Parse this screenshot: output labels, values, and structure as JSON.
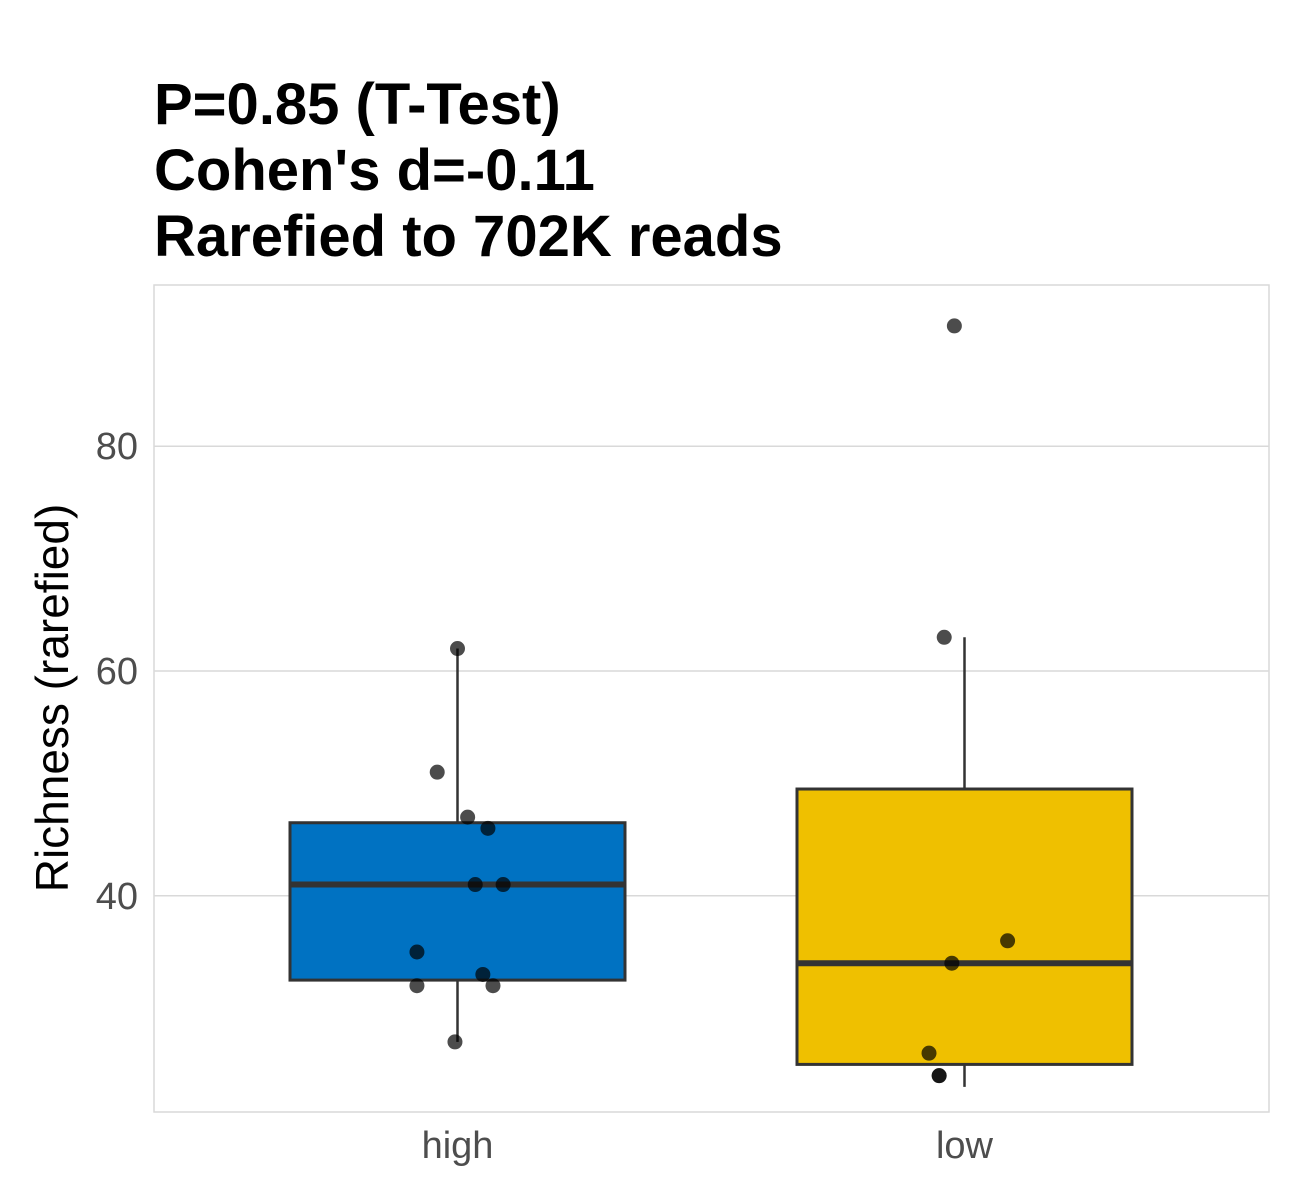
{
  "chart_data": {
    "type": "box",
    "title_lines": [
      "P=0.85 (T-Test)",
      "Cohen's d=-0.11",
      "Rarefied to 702K reads"
    ],
    "xlabel": "",
    "ylabel": "Richness (rarefied)",
    "ylim": [
      22,
      93
    ],
    "yticks": [
      40,
      60,
      80
    ],
    "grid": true,
    "categories": [
      "high",
      "low"
    ],
    "boxes": [
      {
        "category": "high",
        "color": "#0072C2",
        "q1": 32.5,
        "median": 41,
        "q3": 46.5,
        "whisker_low": 27,
        "whisker_high": 62,
        "points": [
          {
            "x_jitter": 0.0,
            "y": 62
          },
          {
            "x_jitter": -0.08,
            "y": 51
          },
          {
            "x_jitter": 0.04,
            "y": 47
          },
          {
            "x_jitter": 0.12,
            "y": 46
          },
          {
            "x_jitter": 0.07,
            "y": 41
          },
          {
            "x_jitter": 0.18,
            "y": 41
          },
          {
            "x_jitter": -0.16,
            "y": 35
          },
          {
            "x_jitter": 0.1,
            "y": 33
          },
          {
            "x_jitter": -0.16,
            "y": 32
          },
          {
            "x_jitter": 0.14,
            "y": 32
          },
          {
            "x_jitter": -0.01,
            "y": 27
          }
        ]
      },
      {
        "category": "low",
        "color": "#EFC000",
        "q1": 25,
        "median": 34,
        "q3": 49.5,
        "whisker_low": 23,
        "whisker_high": 63,
        "points": [
          {
            "x_jitter": -0.04,
            "y": 90.7
          },
          {
            "x_jitter": -0.08,
            "y": 63
          },
          {
            "x_jitter": 0.17,
            "y": 36
          },
          {
            "x_jitter": -0.05,
            "y": 34
          },
          {
            "x_jitter": -0.14,
            "y": 26
          },
          {
            "x_jitter": -0.1,
            "y": 24
          },
          {
            "x_jitter": -0.1,
            "y": 24
          }
        ]
      }
    ]
  }
}
